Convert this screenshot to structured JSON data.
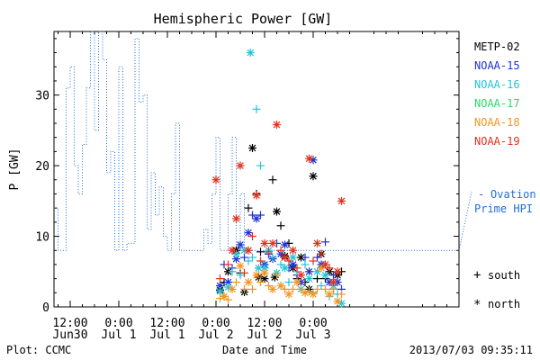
{
  "chart_data": {
    "type": "line",
    "title": "Hemispheric Power [GW]",
    "xlabel": "Date and Time",
    "ylabel": "P [GW]",
    "ylim": [
      0,
      39
    ],
    "y_ticks": [
      0,
      10,
      20,
      30
    ],
    "x_unit": "hours since 2013-06-29 00:00 UT",
    "xlim": [
      32,
      132
    ],
    "x_ticks": [
      {
        "x": 36,
        "line1": "12:00",
        "line2": "Jun30"
      },
      {
        "x": 48,
        "line1": "0:00",
        "line2": "Jul 1"
      },
      {
        "x": 60,
        "line1": "12:00",
        "line2": "Jul 1"
      },
      {
        "x": 72,
        "line1": "0:00",
        "line2": "Jul 2"
      },
      {
        "x": 84,
        "line1": "12:00",
        "line2": "Jul 2"
      },
      {
        "x": 96,
        "line1": "0:00",
        "line2": "Jul 3"
      }
    ],
    "ovation": {
      "name": "Ovation Prime HPI",
      "color": "#1f6fd6",
      "x": [
        32,
        33,
        34,
        35,
        36,
        37,
        38,
        39,
        40,
        41,
        42,
        43,
        44,
        45,
        46,
        47,
        48,
        49,
        50,
        51,
        52,
        53,
        54,
        55,
        56,
        57,
        58,
        59,
        60,
        61,
        62,
        63,
        64,
        65,
        66,
        67,
        68,
        69,
        70,
        71,
        72,
        73,
        74,
        75,
        76,
        77,
        78,
        79,
        80,
        81,
        82,
        83,
        84,
        85,
        86,
        87,
        88,
        89,
        90,
        91,
        92,
        93,
        94,
        95,
        96,
        97,
        98,
        99,
        100,
        101,
        102,
        103,
        104,
        105,
        106,
        107,
        108,
        109,
        110,
        111,
        112,
        113,
        114,
        115,
        116,
        117,
        118,
        119,
        120,
        121,
        122,
        123,
        124,
        125,
        126,
        127,
        128,
        129,
        130,
        131,
        132
      ],
      "y": [
        14,
        8,
        8,
        31,
        34,
        20,
        16,
        23,
        31,
        39,
        25,
        39,
        35,
        19,
        22,
        8,
        34,
        8,
        9,
        9,
        38,
        29,
        30,
        11,
        19,
        13,
        17,
        10,
        8,
        16,
        26,
        8,
        8,
        8,
        8,
        8,
        8,
        11,
        9,
        16,
        24,
        8,
        8,
        16,
        24,
        8,
        16,
        8,
        8,
        8,
        8,
        8,
        8,
        8,
        8,
        8,
        8,
        8,
        8,
        8,
        8,
        8,
        8,
        8,
        8,
        8,
        8,
        8,
        8,
        8,
        8,
        8,
        8,
        8,
        8,
        8,
        8,
        8,
        8,
        8,
        8,
        8,
        8,
        8,
        8,
        8,
        8,
        8,
        8,
        8,
        8,
        8,
        8,
        8,
        8,
        8,
        8,
        8,
        8,
        8,
        8
      ]
    },
    "satellites": [
      {
        "name": "METP-02",
        "color": "#000000",
        "points": [
          [
            73,
            2.4,
            "north"
          ],
          [
            74,
            3.5,
            "south"
          ],
          [
            75,
            5,
            "north"
          ],
          [
            77,
            8,
            "north"
          ],
          [
            78,
            4.8,
            "south"
          ],
          [
            79,
            2.1,
            "north"
          ],
          [
            80,
            14,
            "south"
          ],
          [
            81,
            22.5,
            "north"
          ],
          [
            82,
            16,
            "south"
          ],
          [
            82.5,
            4.2,
            "north"
          ],
          [
            83,
            7.8,
            "south"
          ],
          [
            84,
            4,
            "north"
          ],
          [
            85,
            7.5,
            "south"
          ],
          [
            86,
            18,
            "south"
          ],
          [
            86.5,
            4.2,
            "north"
          ],
          [
            87,
            13.5,
            "north"
          ],
          [
            88,
            11.5,
            "south"
          ],
          [
            89,
            7.2,
            "north"
          ],
          [
            90,
            9,
            "south"
          ],
          [
            91,
            5.5,
            "north"
          ],
          [
            92,
            4,
            "south"
          ],
          [
            93,
            7,
            "north"
          ],
          [
            94,
            3.5,
            "south"
          ],
          [
            95,
            2.5,
            "north"
          ],
          [
            96,
            18.5,
            "north"
          ],
          [
            97,
            4,
            "south"
          ],
          [
            98,
            7.5,
            "north"
          ],
          [
            99,
            4,
            "south"
          ],
          [
            100,
            5,
            "north"
          ],
          [
            101,
            2.5,
            "south"
          ],
          [
            102,
            4.5,
            "north"
          ],
          [
            103,
            5,
            "south"
          ]
        ]
      },
      {
        "name": "NOAA-15",
        "color": "#1d32d6",
        "points": [
          [
            73,
            3,
            "north"
          ],
          [
            74,
            6,
            "south"
          ],
          [
            75,
            3.5,
            "north"
          ],
          [
            76,
            5.5,
            "south"
          ],
          [
            77,
            6.8,
            "north"
          ],
          [
            78,
            8.8,
            "north"
          ],
          [
            79,
            7,
            "south"
          ],
          [
            80,
            10.5,
            "north"
          ],
          [
            81,
            13,
            "south"
          ],
          [
            82,
            12.5,
            "north"
          ],
          [
            83,
            13,
            "south"
          ],
          [
            84,
            6,
            "north"
          ],
          [
            85,
            7.5,
            "south"
          ],
          [
            86,
            6.8,
            "north"
          ],
          [
            87,
            9,
            "south"
          ],
          [
            88,
            7.5,
            "north"
          ],
          [
            89,
            8.8,
            "north"
          ],
          [
            90,
            5.5,
            "south"
          ],
          [
            91,
            6,
            "north"
          ],
          [
            92,
            4.5,
            "south"
          ],
          [
            93,
            3.5,
            "north"
          ],
          [
            94,
            7,
            "south"
          ],
          [
            95,
            5,
            "north"
          ],
          [
            96,
            20.8,
            "north"
          ],
          [
            97,
            7,
            "south"
          ],
          [
            98,
            6,
            "north"
          ],
          [
            99,
            9.2,
            "south"
          ],
          [
            100,
            3.5,
            "north"
          ],
          [
            101,
            4.5,
            "south"
          ],
          [
            102,
            3.5,
            "north"
          ],
          [
            103,
            2.5,
            "south"
          ]
        ]
      },
      {
        "name": "NOAA-16",
        "color": "#27c3d8",
        "points": [
          [
            73,
            2.2,
            "north"
          ],
          [
            74,
            1.5,
            "south"
          ],
          [
            75,
            2.8,
            "north"
          ],
          [
            76,
            5,
            "south"
          ],
          [
            77,
            7.5,
            "north"
          ],
          [
            78,
            4.5,
            "south"
          ],
          [
            79,
            8,
            "north"
          ],
          [
            80,
            6.5,
            "south"
          ],
          [
            80.5,
            36,
            "north"
          ],
          [
            81,
            7,
            "south"
          ],
          [
            82,
            28,
            "south"
          ],
          [
            82.5,
            5.5,
            "north"
          ],
          [
            83,
            20,
            "south"
          ],
          [
            84,
            5.5,
            "north"
          ],
          [
            85,
            8,
            "north"
          ],
          [
            86,
            7,
            "south"
          ],
          [
            87,
            4.8,
            "north"
          ],
          [
            88,
            6,
            "south"
          ],
          [
            89,
            5.5,
            "north"
          ],
          [
            90,
            3.5,
            "south"
          ],
          [
            91,
            7,
            "north"
          ],
          [
            92,
            5,
            "south"
          ],
          [
            93,
            2.5,
            "north"
          ],
          [
            94,
            6,
            "south"
          ],
          [
            95,
            4,
            "north"
          ],
          [
            96,
            2,
            "south"
          ],
          [
            97,
            5,
            "north"
          ],
          [
            98,
            3,
            "south"
          ],
          [
            99,
            4.5,
            "north"
          ],
          [
            100,
            1.5,
            "south"
          ],
          [
            101,
            3,
            "north"
          ],
          [
            102,
            1.8,
            "south"
          ],
          [
            103,
            0.5,
            "north"
          ]
        ]
      },
      {
        "name": "NOAA-17",
        "color": "#2fd76a",
        "points": []
      },
      {
        "name": "NOAA-18",
        "color": "#f3951f",
        "points": [
          [
            73,
            1.2,
            "south"
          ],
          [
            74,
            1.5,
            "north"
          ],
          [
            75,
            1,
            "south"
          ],
          [
            76,
            2.5,
            "north"
          ],
          [
            77,
            3.5,
            "south"
          ],
          [
            78,
            5.8,
            "north"
          ],
          [
            79,
            2.5,
            "south"
          ],
          [
            80,
            3.5,
            "north"
          ],
          [
            81,
            2.5,
            "south"
          ],
          [
            82,
            4.5,
            "north"
          ],
          [
            83,
            3.5,
            "south"
          ],
          [
            84,
            4.8,
            "north"
          ],
          [
            85,
            3,
            "south"
          ],
          [
            86,
            2.5,
            "north"
          ],
          [
            87,
            4.5,
            "south"
          ],
          [
            88,
            3,
            "north"
          ],
          [
            89,
            2.5,
            "south"
          ],
          [
            90,
            1.8,
            "north"
          ],
          [
            91,
            2.5,
            "south"
          ],
          [
            92,
            3.5,
            "north"
          ],
          [
            93,
            2.5,
            "south"
          ],
          [
            94,
            2,
            "north"
          ],
          [
            95,
            2.2,
            "south"
          ],
          [
            96,
            1.8,
            "north"
          ],
          [
            97,
            2.5,
            "south"
          ],
          [
            98,
            5.5,
            "north"
          ],
          [
            99,
            2.5,
            "south"
          ],
          [
            100,
            1.8,
            "north"
          ],
          [
            101,
            2.5,
            "south"
          ],
          [
            102,
            0.8,
            "north"
          ],
          [
            103,
            1.8,
            "south"
          ]
        ]
      },
      {
        "name": "NOAA-19",
        "color": "#e0321c",
        "points": [
          [
            72,
            18,
            "north"
          ],
          [
            73,
            4,
            "south"
          ],
          [
            75,
            6,
            "south"
          ],
          [
            76,
            8,
            "north"
          ],
          [
            77,
            12.5,
            "north"
          ],
          [
            78,
            20,
            "north"
          ],
          [
            79,
            4.8,
            "south"
          ],
          [
            80,
            8,
            "north"
          ],
          [
            81,
            10,
            "south"
          ],
          [
            82,
            15.8,
            "north"
          ],
          [
            83,
            6.5,
            "south"
          ],
          [
            84,
            9,
            "north"
          ],
          [
            85,
            7.8,
            "south"
          ],
          [
            86,
            9,
            "north"
          ],
          [
            87,
            25.8,
            "north"
          ],
          [
            88,
            8,
            "south"
          ],
          [
            89,
            7,
            "north"
          ],
          [
            90,
            6.5,
            "south"
          ],
          [
            91,
            8,
            "north"
          ],
          [
            92,
            5.5,
            "south"
          ],
          [
            93,
            4.5,
            "north"
          ],
          [
            95,
            21,
            "north"
          ],
          [
            96,
            6.5,
            "south"
          ],
          [
            97,
            9,
            "north"
          ],
          [
            98,
            7.5,
            "south"
          ],
          [
            99,
            6,
            "north"
          ],
          [
            100,
            5.5,
            "south"
          ],
          [
            101,
            3.5,
            "north"
          ],
          [
            102,
            5,
            "north"
          ],
          [
            103,
            15,
            "north"
          ]
        ]
      }
    ],
    "legend": {
      "placement": "right",
      "ovation_dash": "-",
      "ovation_line1": "Ovation",
      "ovation_line2": "Prime HPI",
      "south_symbol": "+",
      "south_label": "south",
      "north_symbol": "*",
      "north_label": "north"
    },
    "footer_left": "Plot: CCMC",
    "footer_right": "2013/07/03 09:35:11"
  }
}
